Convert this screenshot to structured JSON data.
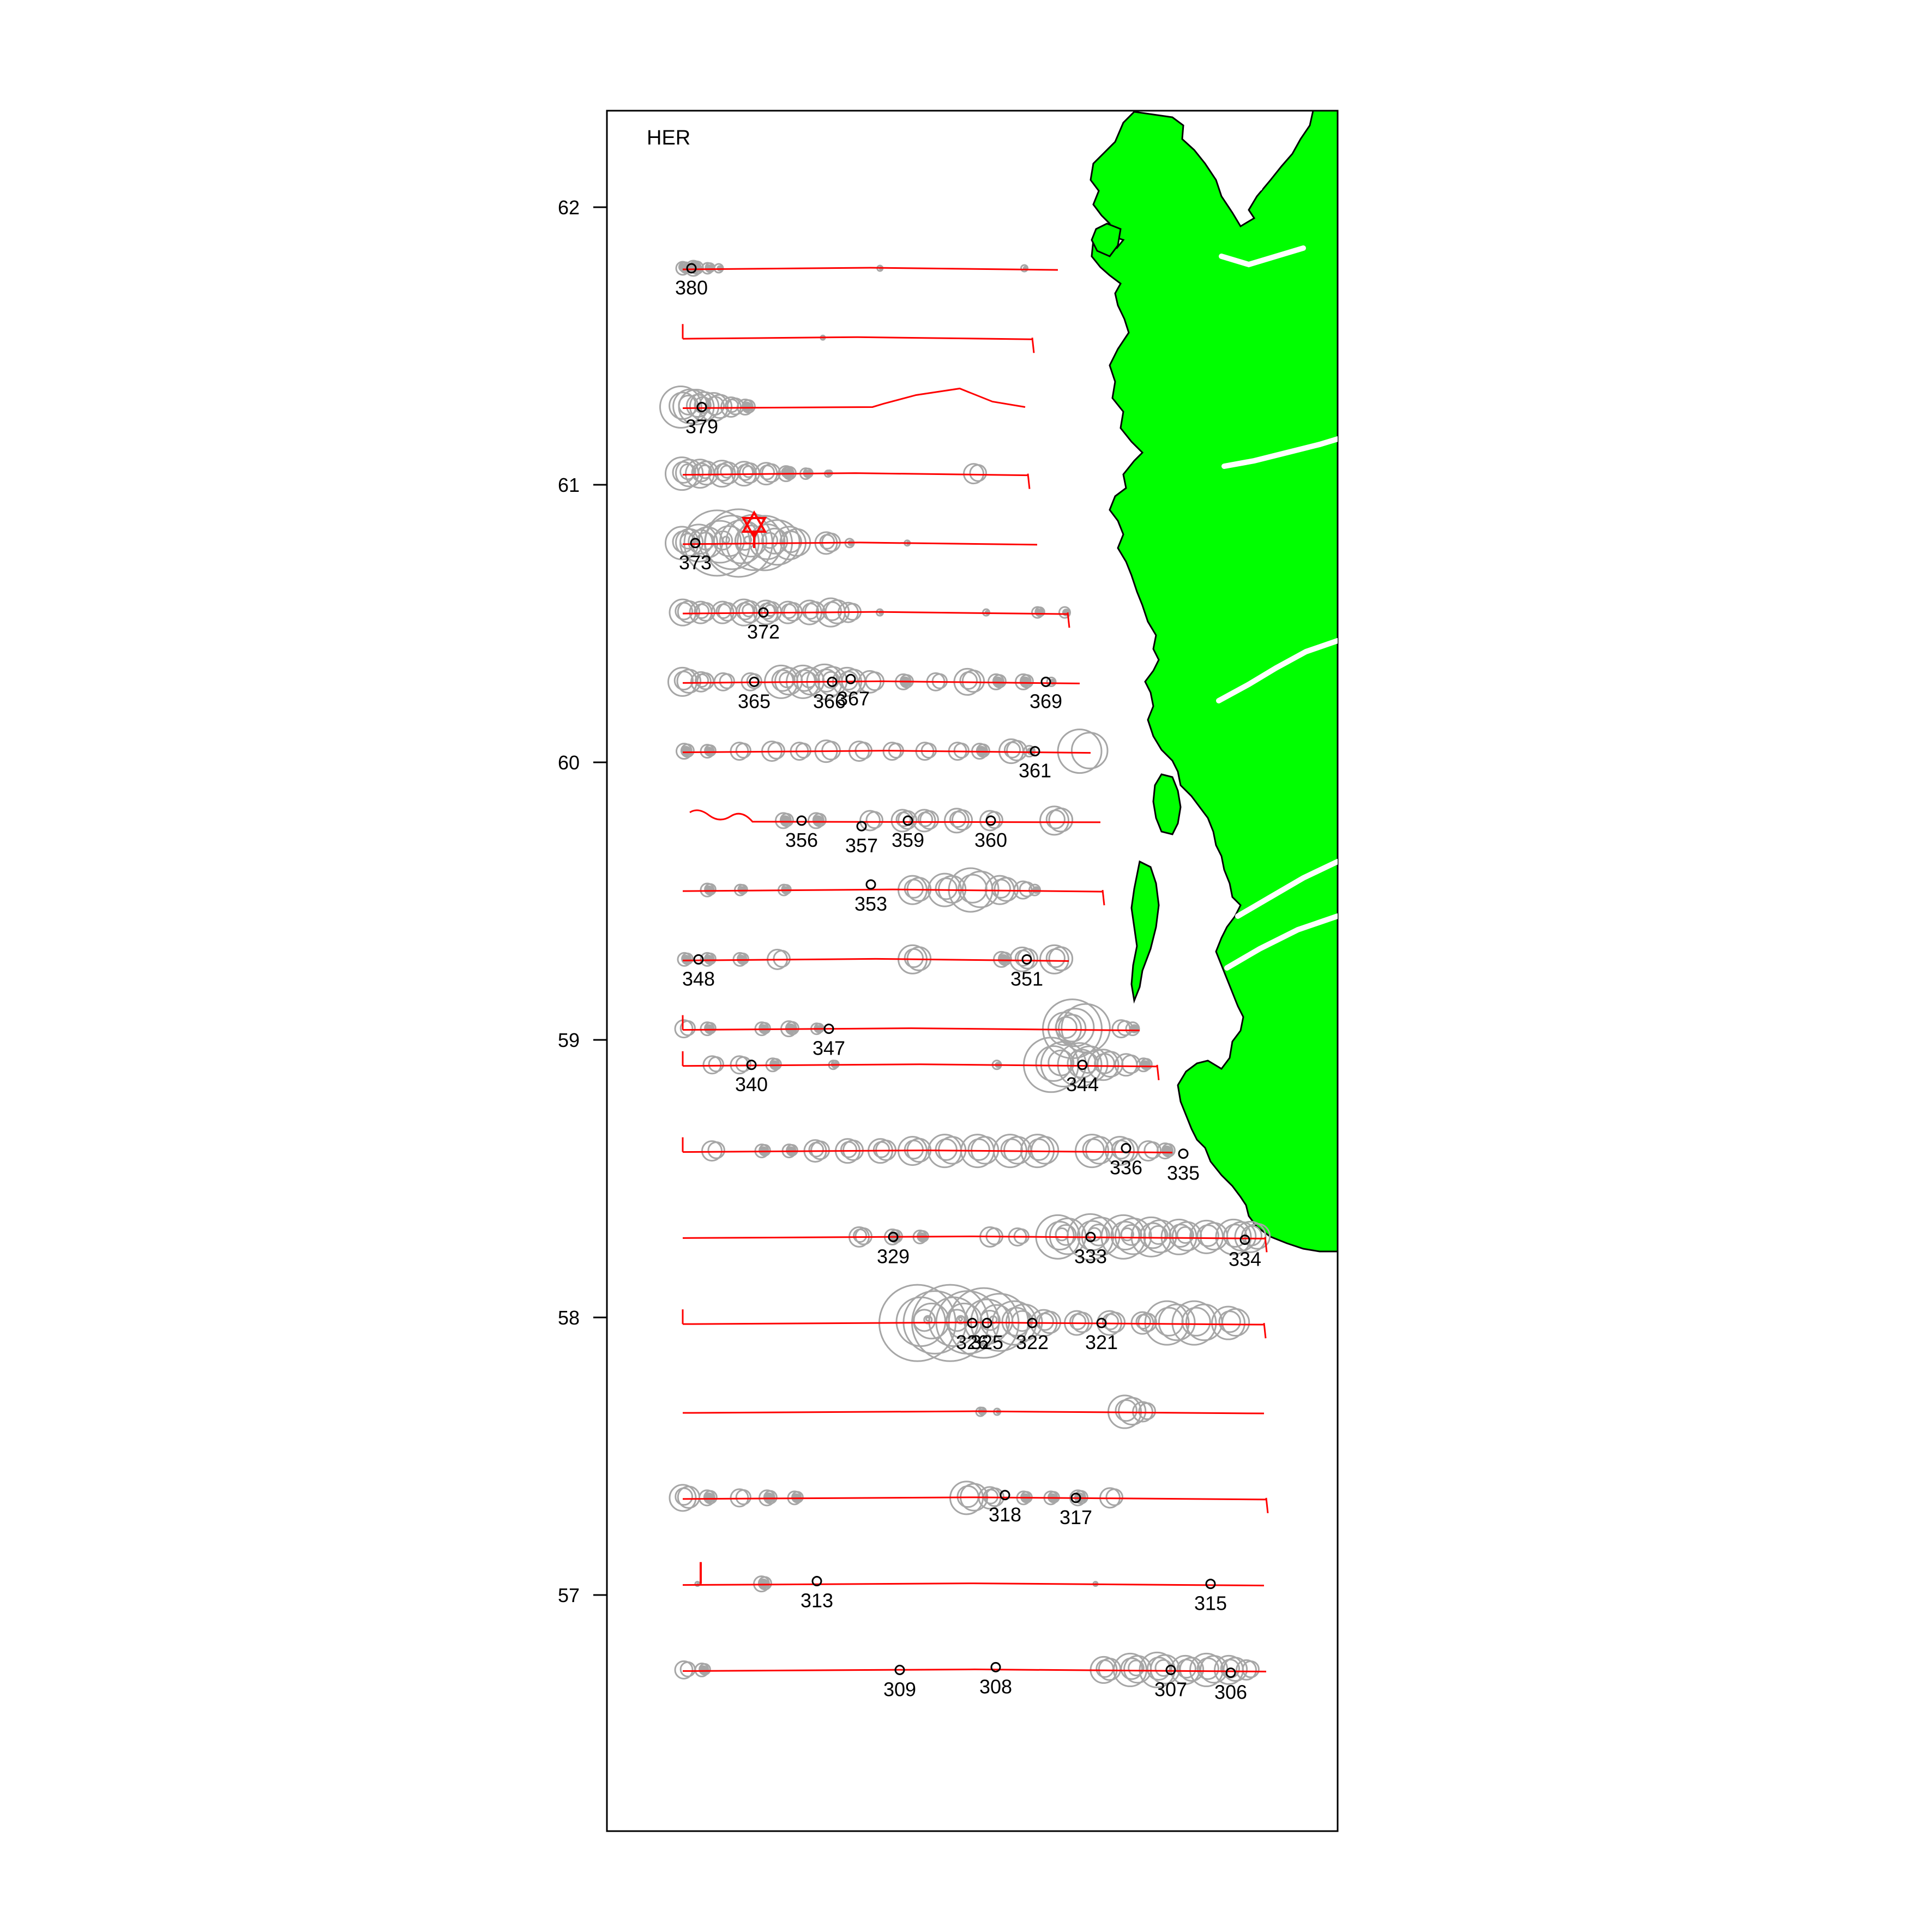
{
  "chart_data": {
    "type": "scatter",
    "title": "HER",
    "ylim": [
      56.15,
      62.35
    ],
    "y_ticks": [
      "57",
      "58",
      "59",
      "60",
      "61",
      "62"
    ],
    "colors": {
      "land": "#00ff00",
      "track": "#ff0000",
      "echo": "#a6a6a6",
      "station": "#000000"
    },
    "transects": [
      {
        "lat": 61.78
      },
      {
        "lat": 61.53
      },
      {
        "lat": 61.28
      },
      {
        "lat": 61.04
      },
      {
        "lat": 60.79
      },
      {
        "lat": 60.54
      },
      {
        "lat": 60.29
      },
      {
        "lat": 60.04
      },
      {
        "lat": 59.79
      },
      {
        "lat": 59.54
      },
      {
        "lat": 59.29
      },
      {
        "lat": 59.04
      },
      {
        "lat": 58.91
      },
      {
        "lat": 58.6
      },
      {
        "lat": 58.29
      },
      {
        "lat": 57.98
      },
      {
        "lat": 57.66
      },
      {
        "lat": 57.35
      },
      {
        "lat": 57.04
      },
      {
        "lat": 56.73
      }
    ],
    "stations": [
      {
        "id": "380",
        "lat": 61.78
      },
      {
        "id": "379",
        "lat": 61.28
      },
      {
        "id": "373",
        "lat": 60.79
      },
      {
        "id": "372",
        "lat": 60.54
      },
      {
        "id": "365",
        "lat": 60.29
      },
      {
        "id": "366",
        "lat": 60.29
      },
      {
        "id": "367",
        "lat": 60.3
      },
      {
        "id": "369",
        "lat": 60.29
      },
      {
        "id": "361",
        "lat": 60.04
      },
      {
        "id": "356",
        "lat": 59.79
      },
      {
        "id": "357",
        "lat": 59.77
      },
      {
        "id": "359",
        "lat": 59.79
      },
      {
        "id": "360",
        "lat": 59.79
      },
      {
        "id": "353",
        "lat": 59.56
      },
      {
        "id": "348",
        "lat": 59.29
      },
      {
        "id": "351",
        "lat": 59.29
      },
      {
        "id": "347",
        "lat": 59.04
      },
      {
        "id": "340",
        "lat": 58.91
      },
      {
        "id": "344",
        "lat": 58.91
      },
      {
        "id": "336",
        "lat": 58.61
      },
      {
        "id": "335",
        "lat": 58.59
      },
      {
        "id": "329",
        "lat": 58.29
      },
      {
        "id": "333",
        "lat": 58.29
      },
      {
        "id": "334",
        "lat": 58.28
      },
      {
        "id": "326",
        "lat": 57.98
      },
      {
        "id": "325",
        "lat": 57.98
      },
      {
        "id": "322",
        "lat": 57.98
      },
      {
        "id": "321",
        "lat": 57.98
      },
      {
        "id": "318",
        "lat": 57.36
      },
      {
        "id": "317",
        "lat": 57.35
      },
      {
        "id": "313",
        "lat": 57.05
      },
      {
        "id": "315",
        "lat": 57.04
      },
      {
        "id": "309",
        "lat": 56.73
      },
      {
        "id": "308",
        "lat": 56.74
      },
      {
        "id": "307",
        "lat": 56.73
      },
      {
        "id": "306",
        "lat": 56.72
      }
    ]
  }
}
